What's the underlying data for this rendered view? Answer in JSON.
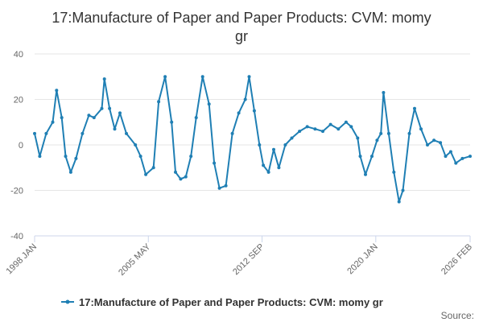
{
  "chart_data": {
    "type": "line",
    "title_lines": [
      "17:Manufacture of Paper and Paper Products: CVM: momy",
      "gr"
    ],
    "x_start": "1998 JAN",
    "x_end": "2026 FEB",
    "x_tick_labels": [
      "1998 JAN",
      "2005 MAY",
      "2012 SEP",
      "2020 JAN",
      "2026 FEB"
    ],
    "y_ticks": [
      40,
      20,
      0,
      -20,
      -40
    ],
    "ylim": [
      -40,
      40
    ],
    "grid": true,
    "legend_position": "bottom-center",
    "series": [
      {
        "name": "17:Manufacture of Paper and Paper Products: CVM: momy gr",
        "color": "#1f7fb4",
        "anchors": [
          [
            "1998-01",
            5
          ],
          [
            "1998-05",
            -5
          ],
          [
            "1998-10",
            5
          ],
          [
            "1999-03",
            10
          ],
          [
            "1999-06",
            24
          ],
          [
            "1999-10",
            12
          ],
          [
            "2000-01",
            -5
          ],
          [
            "2000-05",
            -12
          ],
          [
            "2000-09",
            -6
          ],
          [
            "2001-02",
            5
          ],
          [
            "2001-07",
            13
          ],
          [
            "2001-11",
            12
          ],
          [
            "2002-05",
            16
          ],
          [
            "2002-07",
            29
          ],
          [
            "2002-11",
            16
          ],
          [
            "2003-03",
            7
          ],
          [
            "2003-07",
            14
          ],
          [
            "2003-12",
            5
          ],
          [
            "2004-07",
            0
          ],
          [
            "2004-11",
            -5
          ],
          [
            "2005-03",
            -13
          ],
          [
            "2005-09",
            -10
          ],
          [
            "2006-01",
            19
          ],
          [
            "2006-06",
            30
          ],
          [
            "2006-11",
            10
          ],
          [
            "2007-02",
            -12
          ],
          [
            "2007-06",
            -15
          ],
          [
            "2007-10",
            -14
          ],
          [
            "2008-02",
            -5
          ],
          [
            "2008-06",
            12
          ],
          [
            "2008-11",
            30
          ],
          [
            "2009-04",
            18
          ],
          [
            "2009-08",
            -8
          ],
          [
            "2009-12",
            -19
          ],
          [
            "2010-05",
            -18
          ],
          [
            "2010-10",
            5
          ],
          [
            "2011-03",
            14
          ],
          [
            "2011-08",
            20
          ],
          [
            "2011-11",
            30
          ],
          [
            "2012-03",
            15
          ],
          [
            "2012-07",
            0
          ],
          [
            "2012-10",
            -9
          ],
          [
            "2013-02",
            -12
          ],
          [
            "2013-06",
            -2
          ],
          [
            "2013-10",
            -10
          ],
          [
            "2014-03",
            0
          ],
          [
            "2014-08",
            3
          ],
          [
            "2015-02",
            6
          ],
          [
            "2015-08",
            8
          ],
          [
            "2016-02",
            7
          ],
          [
            "2016-08",
            6
          ],
          [
            "2017-02",
            9
          ],
          [
            "2017-08",
            7
          ],
          [
            "2018-02",
            10
          ],
          [
            "2018-06",
            8
          ],
          [
            "2018-11",
            3
          ],
          [
            "2019-01",
            -5
          ],
          [
            "2019-05",
            -13
          ],
          [
            "2019-10",
            -5
          ],
          [
            "2020-02",
            2
          ],
          [
            "2020-05",
            5
          ],
          [
            "2020-07",
            23
          ],
          [
            "2020-11",
            5
          ],
          [
            "2021-03",
            -12
          ],
          [
            "2021-07",
            -25
          ],
          [
            "2021-10",
            -20
          ],
          [
            "2022-03",
            5
          ],
          [
            "2022-07",
            16
          ],
          [
            "2022-12",
            7
          ],
          [
            "2023-05",
            0
          ],
          [
            "2023-10",
            2
          ],
          [
            "2024-03",
            1
          ],
          [
            "2024-07",
            -5
          ],
          [
            "2024-11",
            -3
          ],
          [
            "2025-03",
            -8
          ],
          [
            "2025-08",
            -6
          ],
          [
            "2026-02",
            -5
          ]
        ]
      }
    ]
  },
  "source_label": "Source:"
}
